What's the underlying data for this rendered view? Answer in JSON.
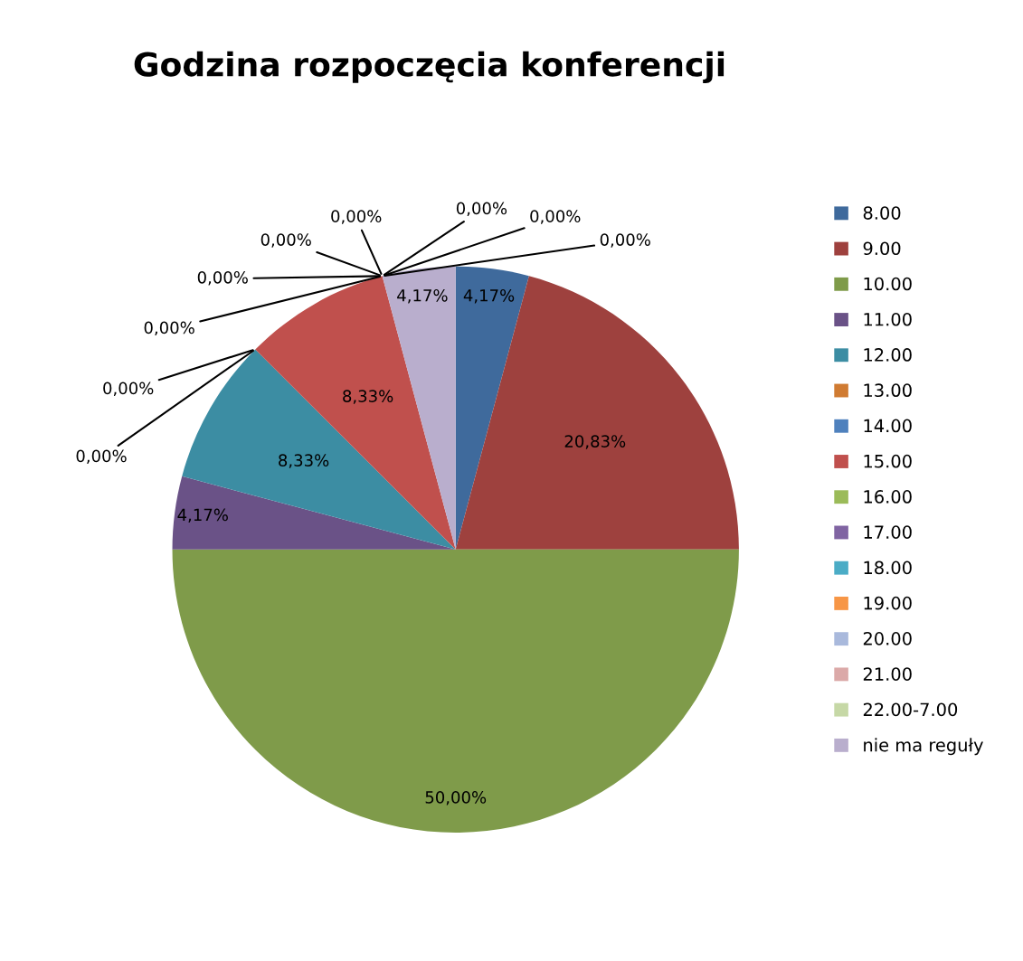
{
  "chart_data": {
    "type": "pie",
    "title": "Godzina rozpoczęcia konferencji",
    "categories": [
      "8.00",
      "9.00",
      "10.00",
      "11.00",
      "12.00",
      "13.00",
      "14.00",
      "15.00",
      "16.00",
      "17.00",
      "18.00",
      "19.00",
      "20.00",
      "21.00",
      "22.00-7.00",
      "nie ma reguły"
    ],
    "values": [
      4.17,
      20.83,
      50.0,
      4.17,
      8.33,
      0,
      0,
      8.33,
      0,
      0,
      0,
      0,
      0,
      0,
      0,
      4.17
    ],
    "colors": [
      "#3f6a9c",
      "#9e413e",
      "#7f9b4a",
      "#6a5287",
      "#3c8da3",
      "#d07b32",
      "#4f81bd",
      "#c0504d",
      "#9bbb59",
      "#8064a2",
      "#4bacc6",
      "#f79646",
      "#a9b9dc",
      "#dba9a8",
      "#c6d8a6",
      "#b9aecd"
    ],
    "value_labels": [
      "4,17%",
      "20,83%",
      "50,00%",
      "4,17%",
      "8,33%",
      "0,00%",
      "0,00%",
      "8,33%",
      "0,00%",
      "0,00%",
      "0,00%",
      "0,00%",
      "0,00%",
      "0,00%",
      "0,00%",
      "4,17%"
    ],
    "legend": "right"
  }
}
